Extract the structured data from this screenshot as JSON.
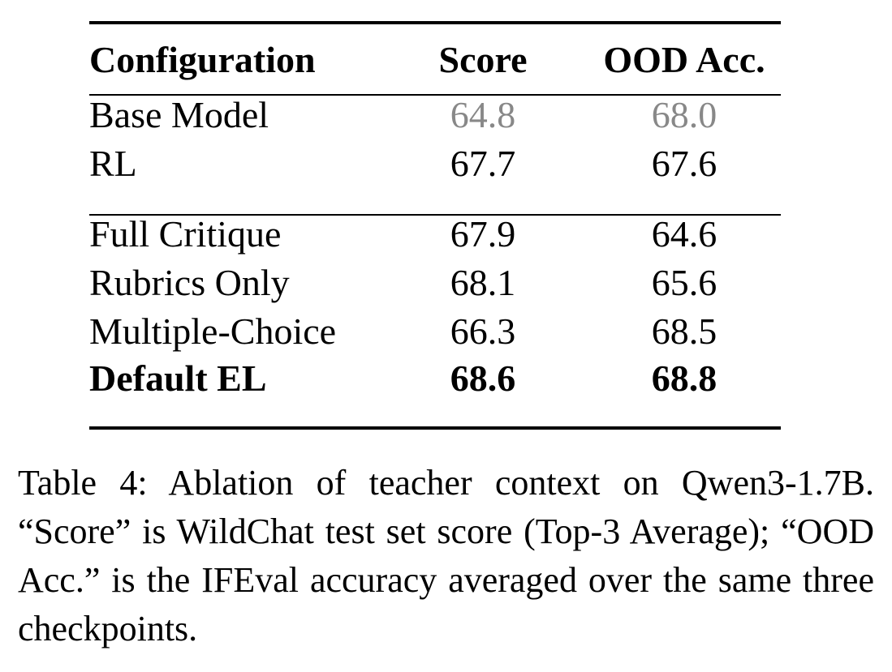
{
  "table": {
    "header": [
      "Configuration",
      "Score",
      "OOD Acc."
    ],
    "rows": [
      [
        "Base Model",
        "64.8",
        "68.0"
      ],
      [
        "RL",
        "67.7",
        "67.6"
      ],
      [
        "Full Critique",
        "67.9",
        "64.6"
      ],
      [
        "Rubrics Only",
        "68.1",
        "65.6"
      ],
      [
        "Multiple-Choice",
        "66.3",
        "68.5"
      ],
      [
        "Default EL",
        "68.6",
        "68.8"
      ]
    ]
  },
  "caption": "Table 4: Ablation of teacher context on Qwen3-1.7B. “Score” is WildChat test set score (Top-3 Average); “OOD Acc.” is the IFEval accuracy averaged over the same three checkpoints."
}
